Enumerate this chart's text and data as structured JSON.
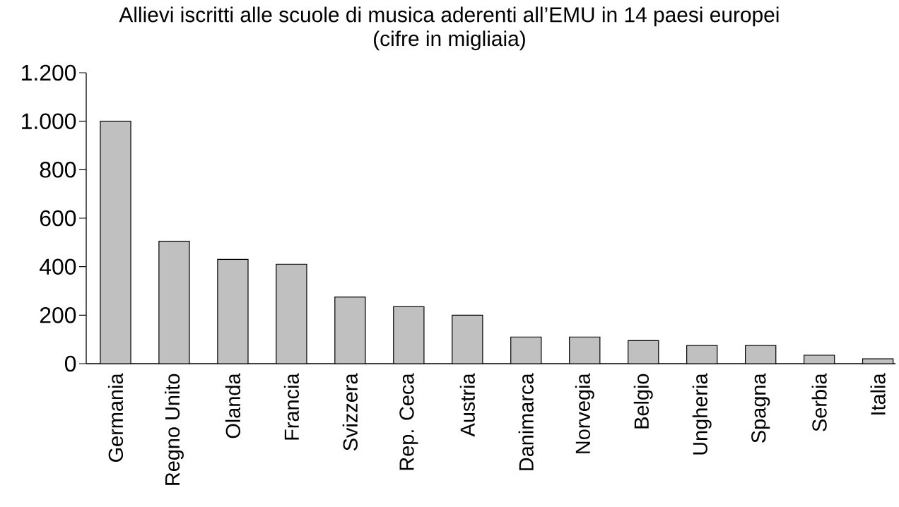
{
  "chart_data": {
    "type": "bar",
    "title": "Allievi iscritti alle scuole di musica aderenti all’EMU in 14 paesi europei",
    "subtitle": "(cifre in migliaia)",
    "categories": [
      "Germania",
      "Regno Unito",
      "Olanda",
      "Francia",
      "Svizzera",
      "Rep. Ceca",
      "Austria",
      "Danimarca",
      "Norvegia",
      "Belgio",
      "Ungheria",
      "Spagna",
      "Serbia",
      "Italia"
    ],
    "values": [
      1000,
      505,
      430,
      410,
      275,
      235,
      200,
      110,
      110,
      95,
      75,
      75,
      35,
      20
    ],
    "color": "#c0c0c0",
    "ylim": [
      0,
      1200
    ],
    "yticks": [
      0,
      200,
      400,
      600,
      800,
      {
        "value": 1000,
        "label": "1.000"
      },
      {
        "value": 1200,
        "label": "1.200"
      }
    ],
    "grid": false
  }
}
